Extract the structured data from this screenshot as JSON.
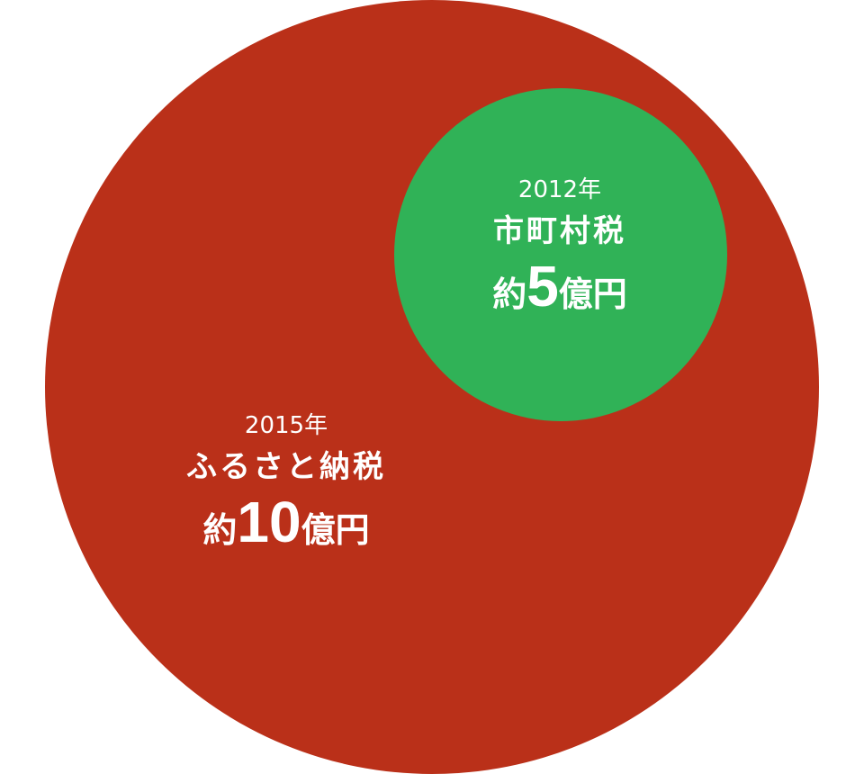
{
  "colors": {
    "furusato": "#BA3019",
    "municipal": "#30B257",
    "text": "#FFFFFF"
  },
  "items": [
    {
      "year": "2015年",
      "name": "ふるさと納税",
      "prefix": "約",
      "value": "10",
      "unit": "億円"
    },
    {
      "year": "2012年",
      "name": "市町村税",
      "prefix": "約",
      "value": "5",
      "unit": "億円"
    }
  ]
}
